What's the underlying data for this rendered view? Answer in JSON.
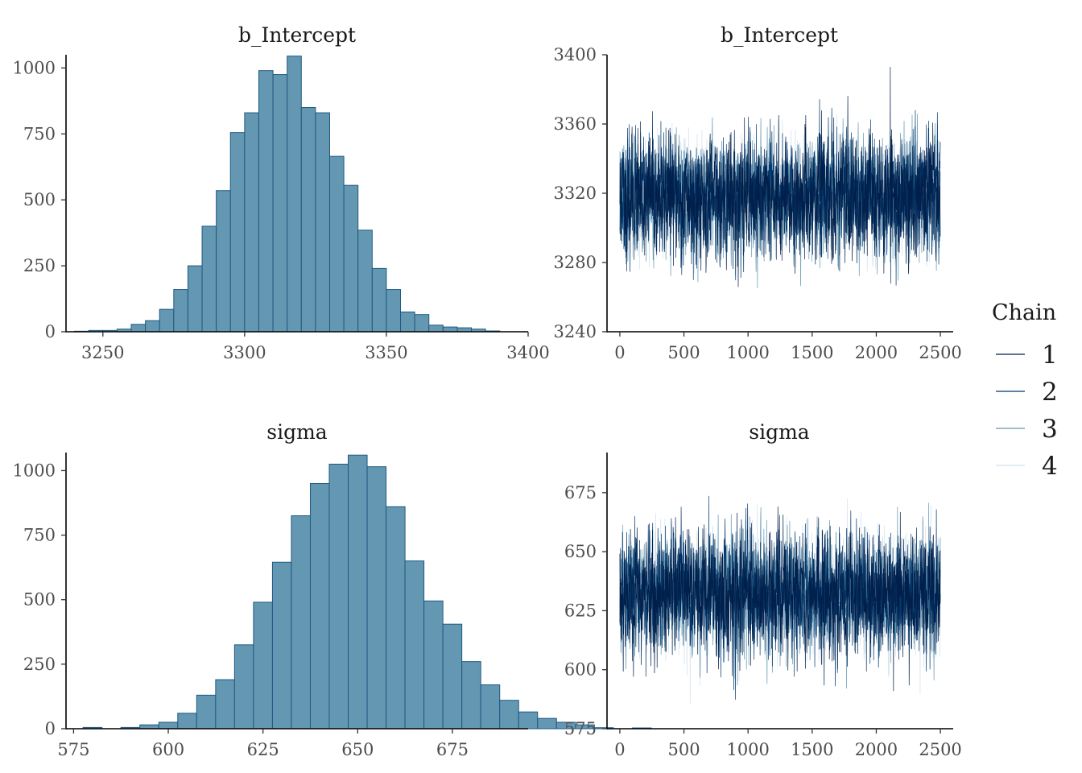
{
  "chart_data": [
    {
      "id": "hist_b_intercept",
      "type": "bar",
      "title": "b_Intercept",
      "xlabel": "",
      "ylabel": "",
      "bar_start": 3240,
      "bin_width": 5,
      "values": [
        2,
        5,
        5,
        10,
        28,
        42,
        85,
        160,
        250,
        400,
        535,
        755,
        830,
        990,
        975,
        1045,
        850,
        830,
        665,
        555,
        385,
        240,
        160,
        75,
        65,
        25,
        18,
        15,
        10,
        3
      ],
      "xlim": [
        3237,
        3400
      ],
      "ylim": [
        0,
        1050
      ],
      "xticks": [
        3250,
        3300,
        3350,
        3400
      ],
      "xtick_labels": [
        "3250",
        "3300",
        "3350",
        "3400"
      ],
      "yticks": [
        0,
        250,
        500,
        750,
        1000
      ],
      "ytick_labels": [
        "0",
        "250",
        "500",
        "750",
        "1000"
      ],
      "bar_fill": "#6497b1",
      "bar_edge": "#1f5a82"
    },
    {
      "id": "trace_b_intercept",
      "type": "line",
      "title": "b_Intercept",
      "xlabel": "",
      "ylabel": "",
      "x": [
        0,
        2500
      ],
      "center": 3318,
      "spread": 16.5,
      "xlim": [
        -100,
        2600
      ],
      "ylim": [
        3240,
        3400
      ],
      "xticks": [
        0,
        500,
        1000,
        1500,
        2000,
        2500
      ],
      "xtick_labels": [
        "0",
        "500",
        "1000",
        "1500",
        "2000",
        "2500"
      ],
      "yticks": [
        3240,
        3280,
        3320,
        3360,
        3400
      ],
      "ytick_labels": [
        "3240",
        "3280",
        "3320",
        "3360",
        "3400"
      ],
      "series": [
        {
          "name": "1",
          "color": "#011f4b",
          "seed": 11
        },
        {
          "name": "2",
          "color": "#03396c",
          "seed": 23
        },
        {
          "name": "3",
          "color": "#6497b1",
          "seed": 37
        },
        {
          "name": "4",
          "color": "#d1e1ec",
          "seed": 41
        }
      ]
    },
    {
      "id": "hist_sigma",
      "type": "bar",
      "title": "sigma",
      "xlabel": "",
      "ylabel": "",
      "bar_start": 577.5,
      "bin_width": 5,
      "values": [
        5,
        0,
        5,
        15,
        25,
        60,
        130,
        190,
        325,
        490,
        645,
        825,
        950,
        1025,
        1060,
        1015,
        860,
        650,
        495,
        405,
        260,
        170,
        110,
        65,
        40,
        25,
        15,
        4,
        0,
        3
      ],
      "xlim": [
        573,
        695
      ],
      "ylim": [
        0,
        1070
      ],
      "xticks": [
        575,
        600,
        625,
        650,
        675
      ],
      "xtick_labels": [
        "575",
        "600",
        "625",
        "650",
        "675"
      ],
      "yticks": [
        0,
        250,
        500,
        750,
        1000
      ],
      "ytick_labels": [
        "0",
        "250",
        "500",
        "750",
        "1000"
      ],
      "bar_fill": "#6497b1",
      "bar_edge": "#1f5a82"
    },
    {
      "id": "trace_sigma",
      "type": "line",
      "title": "sigma",
      "xlabel": "",
      "ylabel": "",
      "x": [
        0,
        2500
      ],
      "center": 632,
      "spread": 12.5,
      "xlim": [
        -100,
        2600
      ],
      "ylim": [
        575,
        692
      ],
      "xticks": [
        0,
        500,
        1000,
        1500,
        2000,
        2500
      ],
      "xtick_labels": [
        "0",
        "500",
        "1000",
        "1500",
        "2000",
        "2500"
      ],
      "yticks": [
        575,
        600,
        625,
        650,
        675
      ],
      "ytick_labels": [
        "575",
        "600",
        "625",
        "650",
        "675"
      ],
      "series": [
        {
          "name": "1",
          "color": "#011f4b",
          "seed": 53
        },
        {
          "name": "2",
          "color": "#03396c",
          "seed": 67
        },
        {
          "name": "3",
          "color": "#6497b1",
          "seed": 71
        },
        {
          "name": "4",
          "color": "#d1e1ec",
          "seed": 89
        }
      ]
    }
  ],
  "legend": {
    "title": "Chain",
    "entries": [
      {
        "label": "1",
        "color": "#011f4b"
      },
      {
        "label": "2",
        "color": "#03396c"
      },
      {
        "label": "3",
        "color": "#6497b1"
      },
      {
        "label": "4",
        "color": "#d1e1ec"
      }
    ]
  }
}
